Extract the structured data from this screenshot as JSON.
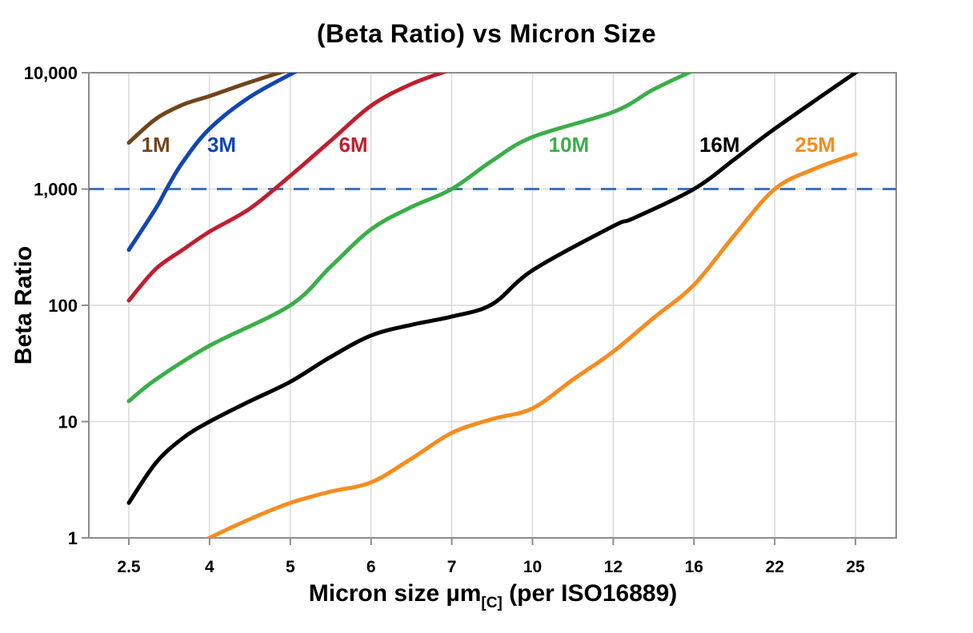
{
  "title": "(Beta Ratio) vs Micron Size",
  "chart_data": {
    "type": "line",
    "title": "(Beta Ratio) vs Micron Size",
    "xlabel_main": "Micron size µm",
    "xlabel_sub": "[C]",
    "xlabel_rest": " (per ISO16889)",
    "ylabel": "Beta Ratio",
    "y_scale": "log",
    "ylim": [
      1,
      10000
    ],
    "grid": true,
    "x_tick_labels": [
      "2.5",
      "4",
      "5",
      "6",
      "7",
      "10",
      "12",
      "16",
      "22",
      "25"
    ],
    "x_tick_values": [
      2.5,
      4,
      5,
      6,
      7,
      10,
      12,
      16,
      22,
      25
    ],
    "y_tick_labels": [
      "1",
      "10",
      "100",
      "1,000",
      "10,000"
    ],
    "y_tick_values": [
      1,
      10,
      100,
      1000,
      10000
    ],
    "axis_color": "#8c8c8c",
    "grid_color": "#d9d9d9",
    "ref_line": {
      "value": 1000,
      "color": "#3f74b8",
      "style": "dashed"
    },
    "series": [
      {
        "name": "1M",
        "color": "#71451b",
        "label_pos": {
          "x": 3.0,
          "y": 2400
        },
        "points": [
          [
            2.5,
            2500
          ],
          [
            3,
            4000
          ],
          [
            3.5,
            5300
          ],
          [
            4,
            6300
          ],
          [
            4.5,
            8300
          ],
          [
            5.0,
            10700
          ]
        ]
      },
      {
        "name": "3M",
        "color": "#1245b4",
        "label_pos": {
          "x": 4.15,
          "y": 2400
        },
        "points": [
          [
            2.5,
            300
          ],
          [
            3,
            680
          ],
          [
            3.2,
            1000
          ],
          [
            3.5,
            1700
          ],
          [
            4,
            3300
          ],
          [
            4.5,
            6200
          ],
          [
            5.12,
            10700
          ]
        ]
      },
      {
        "name": "6M",
        "color": "#c01f2f",
        "label_pos": {
          "x": 5.78,
          "y": 2400
        },
        "points": [
          [
            2.5,
            110
          ],
          [
            3,
            205
          ],
          [
            3.5,
            300
          ],
          [
            4,
            430
          ],
          [
            4.5,
            680
          ],
          [
            5,
            1300
          ],
          [
            5.5,
            2600
          ],
          [
            6,
            5200
          ],
          [
            6.5,
            8000
          ],
          [
            7.0,
            10700
          ]
        ]
      },
      {
        "name": "10M",
        "color": "#3bae49",
        "label_pos": {
          "x": 10.9,
          "y": 2400
        },
        "points": [
          [
            2.5,
            15
          ],
          [
            3,
            23
          ],
          [
            4,
            45
          ],
          [
            5,
            100
          ],
          [
            5.5,
            215
          ],
          [
            6,
            450
          ],
          [
            6.5,
            700
          ],
          [
            7,
            1000
          ],
          [
            8.5,
            1750
          ],
          [
            10,
            2800
          ],
          [
            12,
            4600
          ],
          [
            14,
            7200
          ],
          [
            16,
            10500
          ]
        ]
      },
      {
        "name": "16M",
        "color": "#000000",
        "label_pos": {
          "x": 17.9,
          "y": 2400
        },
        "points": [
          [
            2.5,
            2
          ],
          [
            3,
            4.4
          ],
          [
            3.5,
            7.2
          ],
          [
            4,
            10
          ],
          [
            4.5,
            15
          ],
          [
            5,
            22
          ],
          [
            5.5,
            36
          ],
          [
            6,
            55
          ],
          [
            6.5,
            68
          ],
          [
            7,
            80
          ],
          [
            8.5,
            102
          ],
          [
            10,
            200
          ],
          [
            12,
            480
          ],
          [
            13,
            560
          ],
          [
            16,
            1000
          ],
          [
            19,
            1800
          ],
          [
            22,
            3300
          ],
          [
            25,
            10000
          ],
          [
            25.3,
            11000
          ]
        ]
      },
      {
        "name": "25M",
        "color": "#f68c1f",
        "label_pos": {
          "x": 23.5,
          "y": 2400
        },
        "points": [
          [
            3.85,
            0.9
          ],
          [
            4,
            1
          ],
          [
            4.5,
            1.45
          ],
          [
            5,
            2
          ],
          [
            5.5,
            2.5
          ],
          [
            6,
            3
          ],
          [
            6.5,
            4.8
          ],
          [
            7,
            8
          ],
          [
            8.5,
            10.5
          ],
          [
            10,
            13
          ],
          [
            11,
            23
          ],
          [
            12,
            40
          ],
          [
            14,
            78
          ],
          [
            16,
            150
          ],
          [
            19,
            400
          ],
          [
            22,
            1000
          ],
          [
            23.5,
            1500
          ],
          [
            25,
            2000
          ]
        ]
      }
    ]
  }
}
